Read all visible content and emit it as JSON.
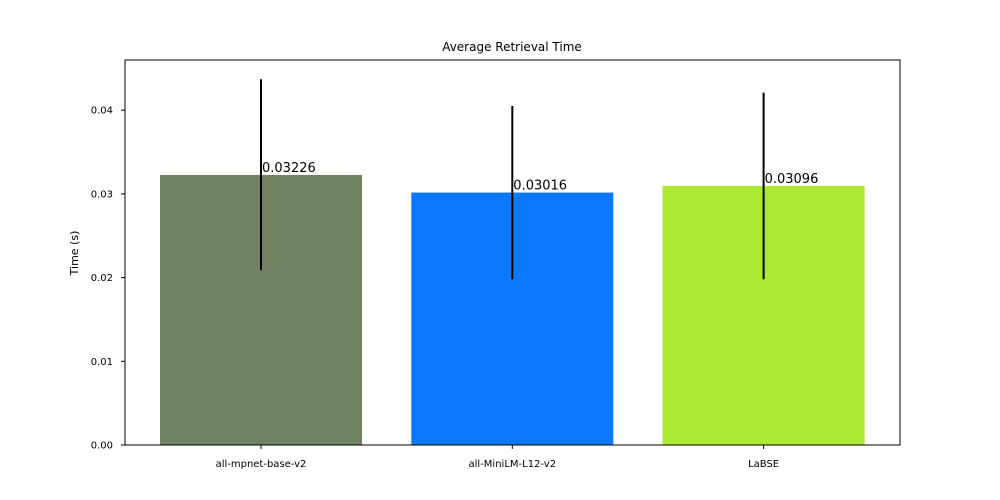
{
  "chart_data": {
    "type": "bar",
    "title": "Average Retrieval Time",
    "xlabel": "",
    "ylabel": "Time (s)",
    "categories": [
      "all-mpnet-base-v2",
      "all-MiniLM-L12-v2",
      "LaBSE"
    ],
    "values": [
      0.03226,
      0.03016,
      0.03096
    ],
    "value_labels": [
      "0.03226",
      "0.03016",
      "0.03096"
    ],
    "error_low": [
      0.0209,
      0.0198,
      0.0198
    ],
    "error_high": [
      0.0437,
      0.0405,
      0.0421
    ],
    "colors": [
      "#718262",
      "#0a79fd",
      "#ade832"
    ],
    "ylim": [
      0,
      0.046
    ],
    "yticks": [
      0.0,
      0.01,
      0.02,
      0.03,
      0.04
    ],
    "ytick_labels": [
      "0.00",
      "0.01",
      "0.02",
      "0.03",
      "0.04"
    ],
    "grid": false,
    "legend": "none"
  }
}
